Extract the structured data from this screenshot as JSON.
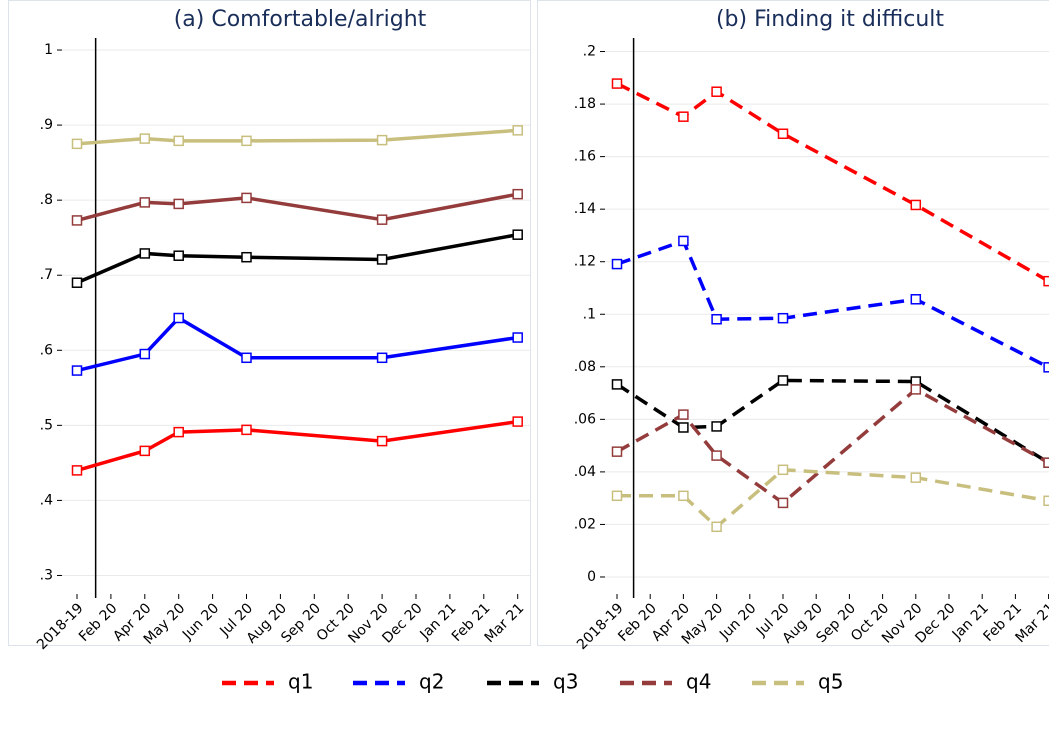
{
  "chart_data": [
    {
      "type": "line",
      "title": "(a) Comfortable/alright",
      "categories": [
        "2018-19",
        "Feb 20",
        "Apr 20",
        "May 20",
        "Jun 20",
        "Jul 20",
        "Aug 20",
        "Sep 20",
        "Oct 20",
        "Nov 20",
        "Dec 20",
        "Jan 21",
        "Feb 21",
        "Mar 21"
      ],
      "x": [
        "2018-19",
        "Apr 20",
        "May 20",
        "Jul 20",
        "Nov 20",
        "Mar 21"
      ],
      "vline": 0.55,
      "dashed": false,
      "grid": true,
      "ylim": [
        0.27,
        1.04
      ],
      "yticks": [
        {
          "value": 0.3,
          "label": ".3"
        },
        {
          "value": 0.4,
          "label": ".4"
        },
        {
          "value": 0.5,
          "label": ".5"
        },
        {
          "value": 0.6,
          "label": ".6"
        },
        {
          "value": 0.7,
          "label": ".7"
        },
        {
          "value": 0.8,
          "label": ".8"
        },
        {
          "value": 0.9,
          "label": ".9"
        },
        1
      ],
      "series": [
        {
          "name": "q1",
          "color": "#ff0000",
          "values": [
            0.44,
            0.466,
            0.491,
            0.494,
            0.479,
            0.505
          ]
        },
        {
          "name": "q2",
          "color": "#0000ff",
          "values": [
            0.573,
            0.595,
            0.643,
            0.59,
            0.59,
            0.617
          ]
        },
        {
          "name": "q3",
          "color": "#000000",
          "values": [
            0.69,
            0.729,
            0.726,
            0.724,
            0.721,
            0.754
          ]
        },
        {
          "name": "q4",
          "color": "#943c3c",
          "values": [
            0.773,
            0.797,
            0.795,
            0.803,
            0.774,
            0.808
          ]
        },
        {
          "name": "q5",
          "color": "#c8bf7f",
          "values": [
            0.875,
            0.882,
            0.879,
            0.879,
            0.88,
            0.893
          ]
        }
      ]
    },
    {
      "type": "line",
      "title": "(b) Finding it difficult",
      "categories": [
        "2018-19",
        "Feb 20",
        "Apr 20",
        "May 20",
        "Jun 20",
        "Jul 20",
        "Aug 20",
        "Sep 20",
        "Oct 20",
        "Nov 20",
        "Dec 20",
        "Jan 21",
        "Feb 21",
        "Mar 21"
      ],
      "x": [
        "2018-19",
        "Apr 20",
        "May 20",
        "Jul 20",
        "Nov 20",
        "Mar 21"
      ],
      "vline": 0.5,
      "dashed": true,
      "grid": true,
      "ylim": [
        -0.008,
        0.212
      ],
      "yticks": [
        0,
        {
          "value": 0.02,
          "label": ".02"
        },
        {
          "value": 0.04,
          "label": ".04"
        },
        {
          "value": 0.06,
          "label": ".06"
        },
        {
          "value": 0.08,
          "label": ".08"
        },
        {
          "value": 0.1,
          "label": ".1"
        },
        {
          "value": 0.12,
          "label": ".12"
        },
        {
          "value": 0.14,
          "label": ".14"
        },
        {
          "value": 0.16,
          "label": ".16"
        },
        {
          "value": 0.18,
          "label": ".18"
        },
        {
          "value": 0.2,
          "label": ".2"
        }
      ],
      "series": [
        {
          "color": "#ff0000",
          "values": [
            0.1878,
            0.1752,
            0.1847,
            0.1687,
            0.1416,
            0.1126
          ]
        },
        {
          "color": "#0000ff",
          "values": [
            0.1191,
            0.1279,
            0.0981,
            0.0985,
            0.1057,
            0.0798
          ]
        },
        {
          "color": "#000000",
          "values": [
            0.0733,
            0.0569,
            0.0573,
            0.0748,
            0.0744,
            0.0435
          ]
        },
        {
          "color": "#943c3c",
          "values": [
            0.0477,
            0.0618,
            0.0462,
            0.0282,
            0.0714,
            0.0435
          ]
        },
        {
          "color": "#c8bf7f",
          "values": [
            0.0309,
            0.0309,
            0.0191,
            0.0408,
            0.0378,
            0.029
          ]
        }
      ]
    }
  ]
}
